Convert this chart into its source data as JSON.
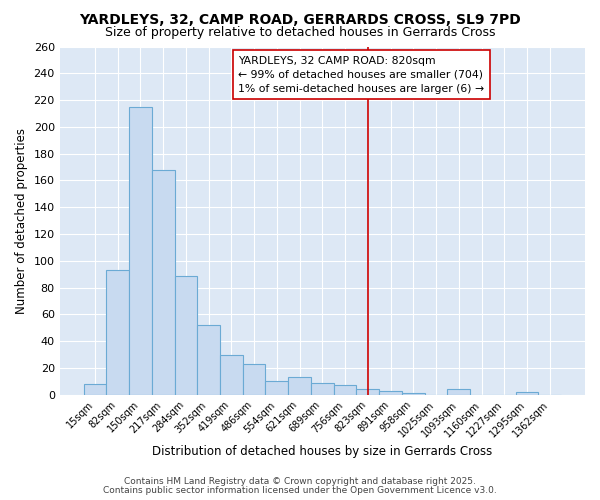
{
  "title": "YARDLEYS, 32, CAMP ROAD, GERRARDS CROSS, SL9 7PD",
  "subtitle": "Size of property relative to detached houses in Gerrards Cross",
  "xlabel": "Distribution of detached houses by size in Gerrards Cross",
  "ylabel": "Number of detached properties",
  "categories": [
    "15sqm",
    "82sqm",
    "150sqm",
    "217sqm",
    "284sqm",
    "352sqm",
    "419sqm",
    "486sqm",
    "554sqm",
    "621sqm",
    "689sqm",
    "756sqm",
    "823sqm",
    "891sqm",
    "958sqm",
    "1025sqm",
    "1093sqm",
    "1160sqm",
    "1227sqm",
    "1295sqm",
    "1362sqm"
  ],
  "values": [
    8,
    93,
    215,
    168,
    89,
    52,
    30,
    23,
    10,
    13,
    9,
    7,
    4,
    3,
    1,
    0,
    4,
    0,
    0,
    2,
    0
  ],
  "bar_color": "#c8daf0",
  "bar_edge_color": "#6baad4",
  "plot_bg_color": "#dde8f5",
  "fig_bg_color": "#ffffff",
  "grid_color": "#ffffff",
  "red_line_index": 12,
  "annotation_title": "YARDLEYS, 32 CAMP ROAD: 820sqm",
  "annotation_line1": "← 99% of detached houses are smaller (704)",
  "annotation_line2": "1% of semi-detached houses are larger (6) →",
  "annotation_box_facecolor": "#ffffff",
  "annotation_box_edgecolor": "#cc0000",
  "footer1": "Contains HM Land Registry data © Crown copyright and database right 2025.",
  "footer2": "Contains public sector information licensed under the Open Government Licence v3.0.",
  "ylim": [
    0,
    260
  ],
  "yticks": [
    0,
    20,
    40,
    60,
    80,
    100,
    120,
    140,
    160,
    180,
    200,
    220,
    240,
    260
  ]
}
